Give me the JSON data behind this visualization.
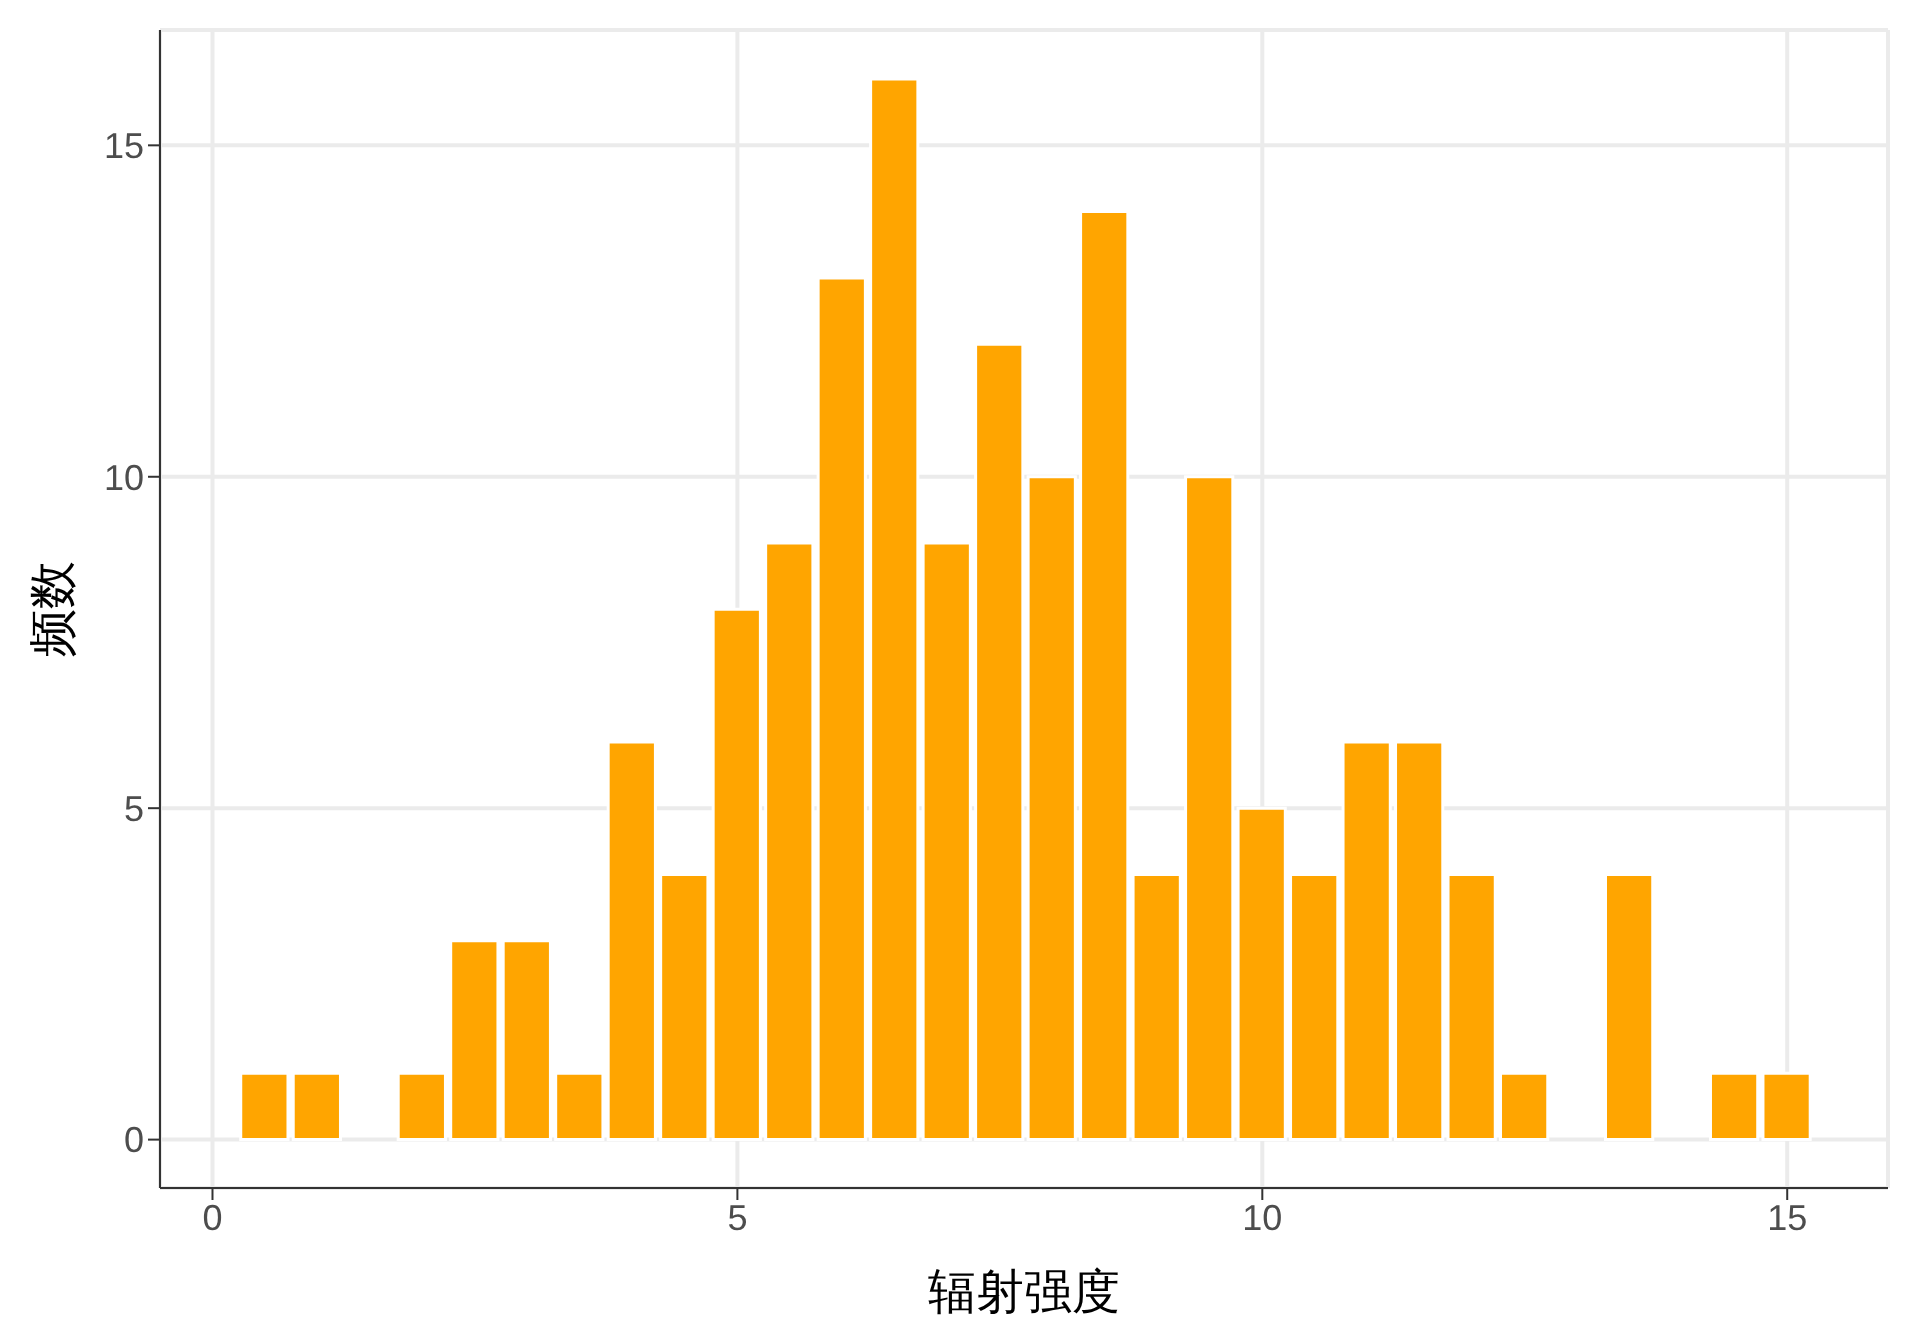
{
  "chart_data": {
    "type": "histogram",
    "xlabel": "辐射强度",
    "ylabel": "频数",
    "bins": [
      -0.25,
      0.25,
      0.75,
      1.25,
      1.75,
      2.25,
      2.75,
      3.25,
      3.75,
      4.25,
      4.75,
      5.25,
      5.75,
      6.25,
      6.75,
      7.25,
      7.75,
      8.25,
      8.75,
      9.25,
      9.75,
      10.25,
      10.75,
      11.25,
      11.75,
      12.25,
      12.75,
      13.25,
      13.75,
      14.25,
      14.75,
      15.25
    ],
    "values": [
      0,
      1,
      1,
      0,
      1,
      3,
      3,
      1,
      6,
      4,
      8,
      9,
      13,
      16,
      9,
      12,
      10,
      14,
      4,
      10,
      5,
      4,
      6,
      6,
      4,
      1,
      0,
      4,
      0,
      1,
      1
    ],
    "color": "#ffa500",
    "xlim": [
      -0.5,
      15.96
    ],
    "xticks": [
      0,
      5,
      10,
      15
    ],
    "ylim": [
      -0.73,
      16.74
    ],
    "yticks": [
      0,
      5,
      10,
      15
    ],
    "grid": true
  }
}
